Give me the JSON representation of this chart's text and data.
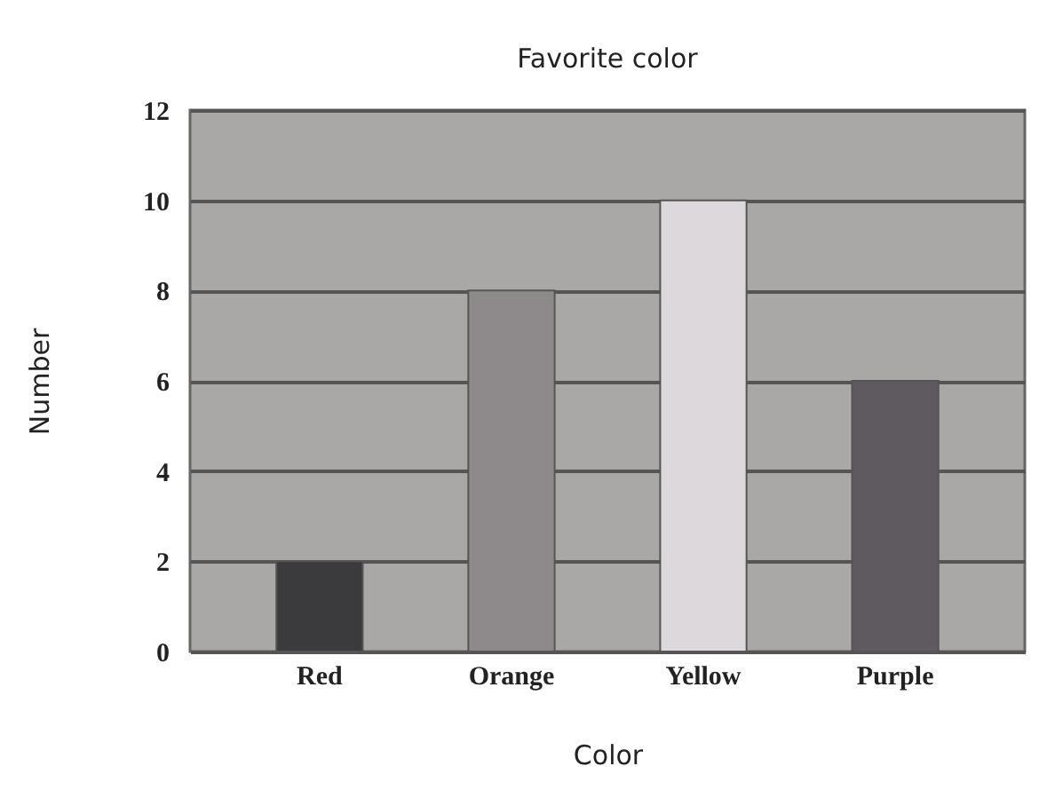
{
  "chart_data": {
    "type": "bar",
    "title": "Favorite color",
    "xlabel": "Color",
    "ylabel": "Number",
    "categories": [
      "Red",
      "Orange",
      "Yellow",
      "Purple"
    ],
    "values": [
      2,
      8,
      10,
      6
    ],
    "colors": [
      "#3b3a3d",
      "#8e8a8c",
      "#dcd8db",
      "#5f5a5f"
    ],
    "ylim": [
      0,
      12
    ],
    "yticks": [
      0,
      2,
      4,
      6,
      8,
      10,
      12
    ],
    "grid": "y"
  }
}
